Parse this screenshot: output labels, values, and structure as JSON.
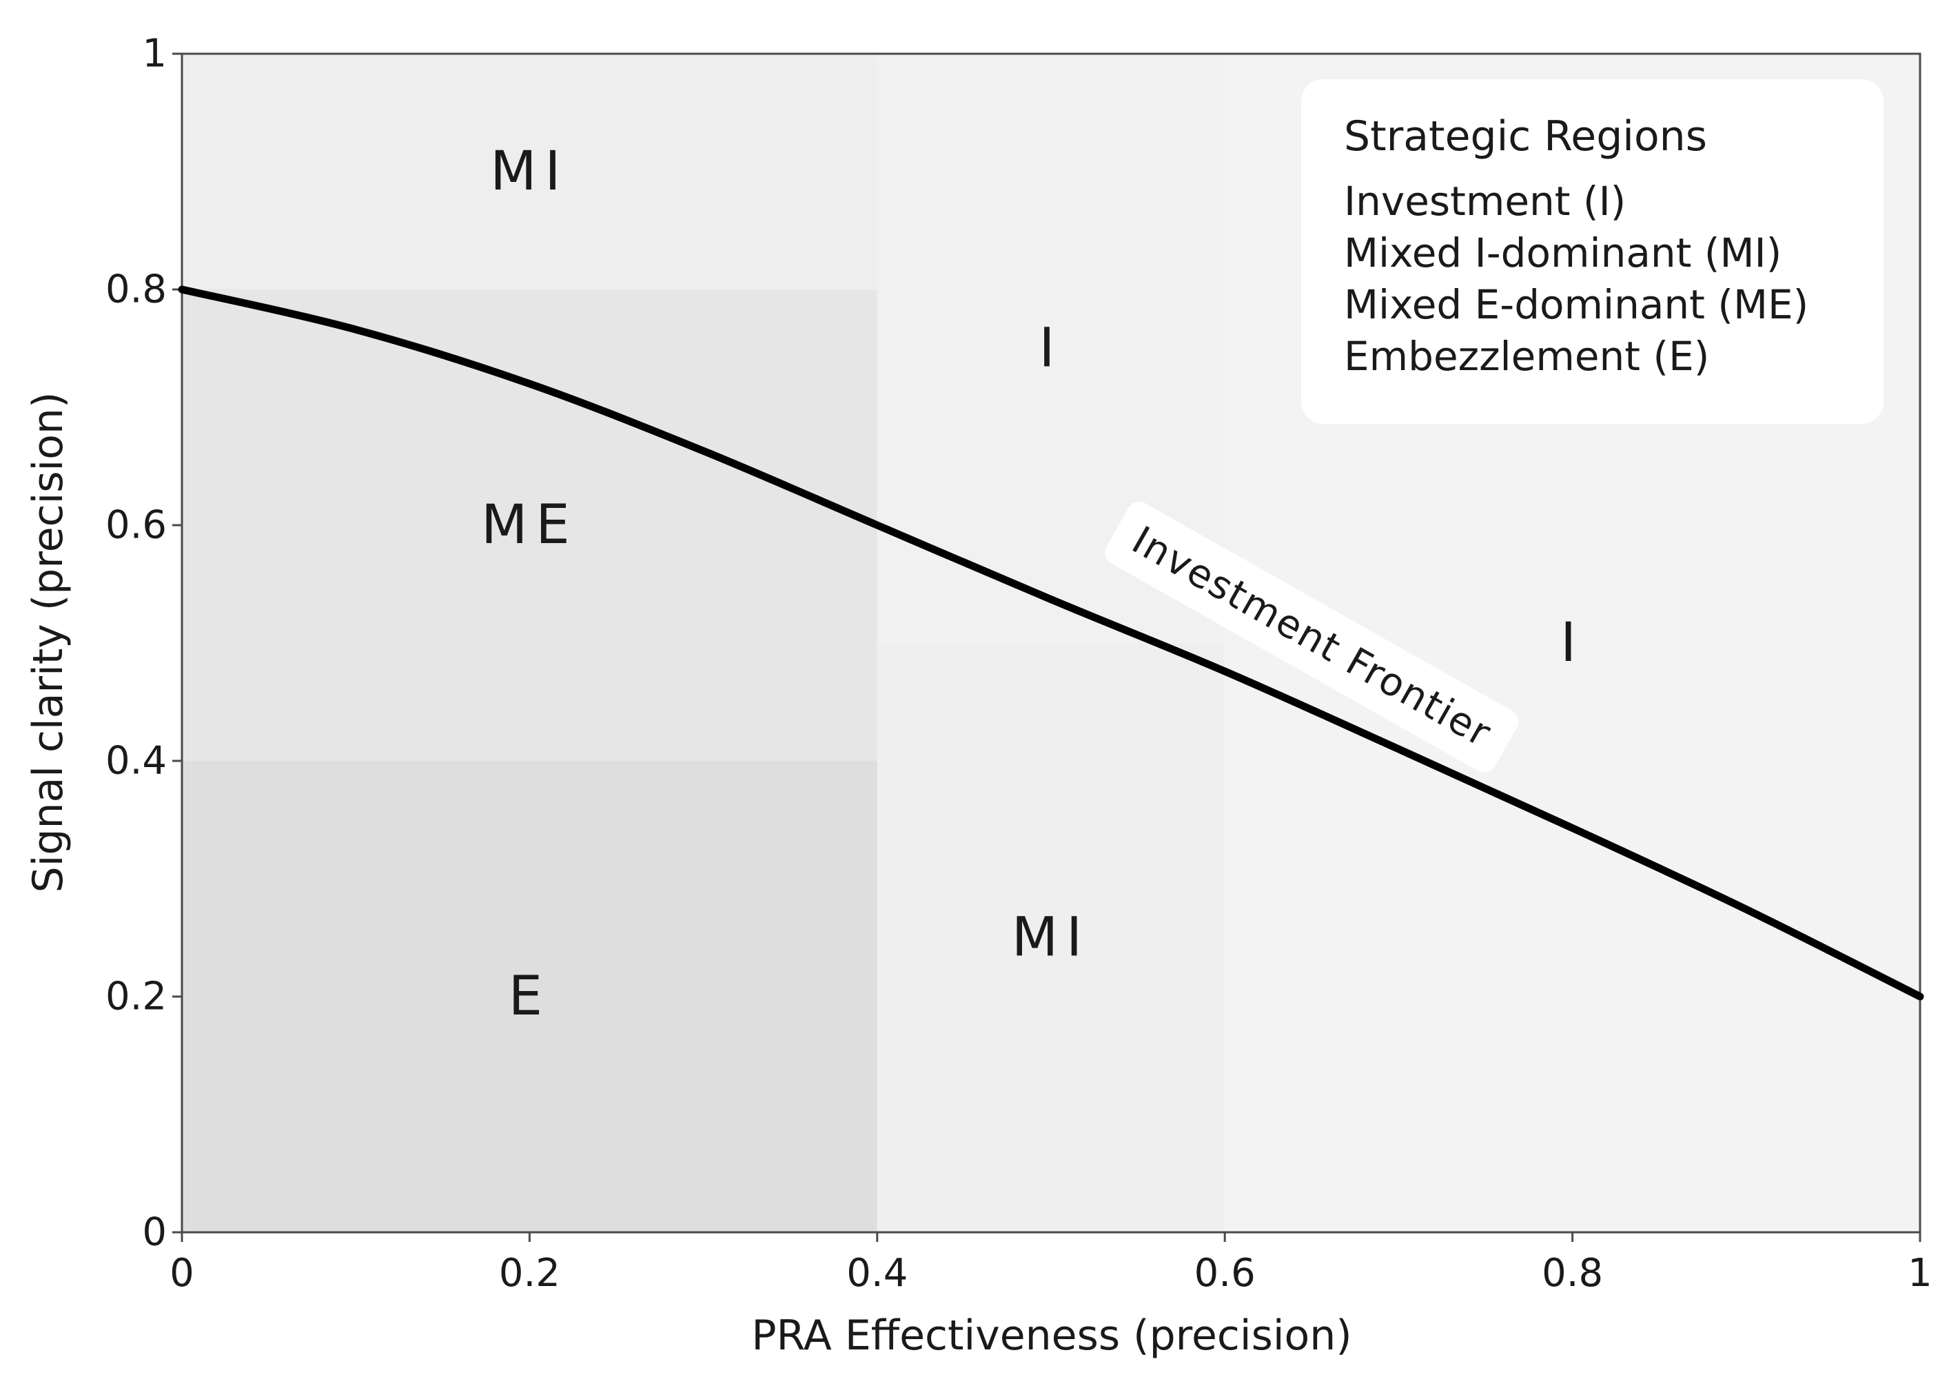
{
  "chart_data": {
    "type": "line",
    "xlabel": "PRA Effectiveness (precision)",
    "ylabel": "Signal clarity (precision)",
    "xlim": [
      0,
      1
    ],
    "ylim": [
      0,
      1
    ],
    "xticks": [
      "0",
      "0.2",
      "0.4",
      "0.6",
      "0.8",
      "1"
    ],
    "yticks": [
      "0",
      "0.2",
      "0.4",
      "0.6",
      "0.8",
      "1"
    ],
    "grid": false,
    "series": [
      {
        "name": "Investment Frontier",
        "x": [
          0,
          0.1,
          0.2,
          0.3,
          0.4,
          0.5,
          0.6,
          0.7,
          0.8,
          0.9,
          1.0
        ],
        "y": [
          0.8,
          0.766,
          0.72,
          0.663,
          0.6,
          0.537,
          0.476,
          0.41,
          0.343,
          0.274,
          0.2
        ],
        "color": "#000000"
      }
    ],
    "regions": [
      {
        "label": "E",
        "x": [
          0,
          0.4
        ],
        "y": [
          0,
          0.4
        ],
        "color": "#dedede"
      },
      {
        "label": "ME",
        "x": [
          0,
          0.4
        ],
        "y": [
          0.4,
          0.8
        ],
        "color": "#e6e6e6"
      },
      {
        "label": "MI",
        "x": [
          0,
          0.4
        ],
        "y": [
          0.8,
          1.0
        ],
        "color": "#eeeeee"
      },
      {
        "label": "I",
        "x": [
          0.4,
          0.6
        ],
        "y": [
          0.5,
          1.0
        ],
        "color": "#f1f1f1"
      },
      {
        "label": "MI",
        "x": [
          0.4,
          0.6
        ],
        "y": [
          0,
          0.5
        ],
        "color": "#efefef"
      },
      {
        "label": "I",
        "x": [
          0.6,
          1.0
        ],
        "y": [
          0,
          1.0
        ],
        "color": "#f3f3f3"
      }
    ],
    "region_labels": [
      {
        "text": "MI",
        "x": 0.2,
        "y": 0.9
      },
      {
        "text": "ME",
        "x": 0.2,
        "y": 0.6
      },
      {
        "text": "E",
        "x": 0.2,
        "y": 0.2
      },
      {
        "text": "I",
        "x": 0.5,
        "y": 0.75
      },
      {
        "text": "MI",
        "x": 0.5,
        "y": 0.25
      },
      {
        "text": "I",
        "x": 0.8,
        "y": 0.5
      }
    ],
    "frontier_label": {
      "text": "Investment Frontier",
      "x": 0.65,
      "y": 0.505
    },
    "legend": {
      "title": "Strategic Regions",
      "items": [
        "Investment (I)",
        "Mixed I-dominant (MI)",
        "Mixed E-dominant (ME)",
        "Embezzlement (E)"
      ],
      "placement": "top-right"
    }
  }
}
